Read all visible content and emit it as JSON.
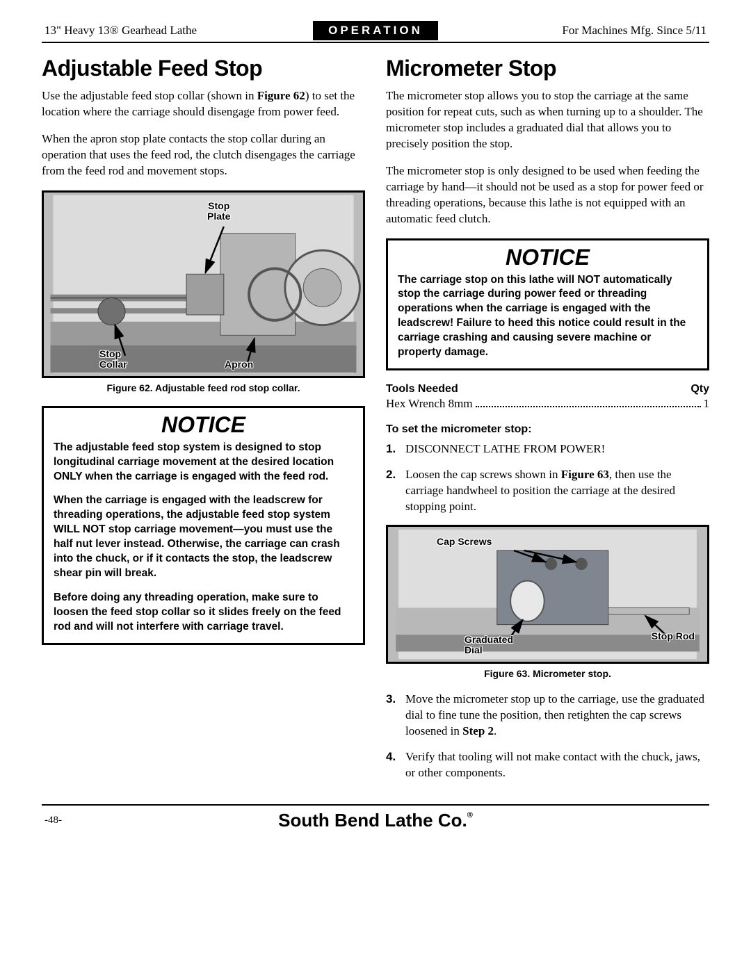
{
  "header": {
    "left": "13\" Heavy 13® Gearhead Lathe",
    "center": "OPERATION",
    "right": "For Machines Mfg. Since 5/11"
  },
  "left_col": {
    "heading": "Adjustable Feed Stop",
    "para1_a": "Use the adjustable feed stop collar (shown in ",
    "para1_b": "Figure 62",
    "para1_c": ") to set the location where the carriage should disengage from power feed.",
    "para2": "When the apron stop plate contacts the stop collar during an operation that uses the feed rod, the clutch disengages the carriage from the feed rod and movement stops.",
    "fig62": {
      "labels": {
        "stop_plate": "Stop\nPlate",
        "stop_collar": "Stop\nCollar",
        "apron": "Apron"
      },
      "caption": "Figure 62. Adjustable feed rod stop collar."
    },
    "notice": {
      "title": "NOTICE",
      "p1": "The adjustable feed stop system is designed to stop longitudinal carriage movement at the desired location ONLY when the carriage is engaged with the feed rod.",
      "p2": "When the carriage is engaged with the leadscrew for threading operations, the adjustable feed stop system WILL NOT stop carriage movement—you must use the half nut lever instead. Otherwise, the carriage can crash into the chuck, or if it contacts the stop, the leadscrew shear pin will break.",
      "p3": "Before doing any threading operation, make sure to loosen the feed stop collar so it slides freely on the feed rod and will not interfere with carriage travel."
    }
  },
  "right_col": {
    "heading": "Micrometer Stop",
    "para1": "The micrometer stop allows you to stop the carriage at the same position for repeat cuts, such as when turning up to a shoulder. The micrometer stop includes a graduated dial that allows you to precisely position the stop.",
    "para2": "The micrometer stop is only designed to be used when feeding the carriage by hand—it should not be used as a stop for power feed or threading operations, because this lathe is not equipped with an automatic feed clutch.",
    "notice": {
      "title": "NOTICE",
      "p1": "The carriage stop on this lathe will NOT automatically stop the carriage during power feed or threading operations when the carriage is engaged with the leadscrew! Failure to heed this notice could result in the carriage crashing and causing severe machine or property damage."
    },
    "tools": {
      "heading_left": "Tools Needed",
      "heading_right": "Qty",
      "item": "Hex Wrench 8mm",
      "qty": "1"
    },
    "steps_heading": "To set the micrometer stop:",
    "steps": {
      "s1": "DISCONNECT LATHE FROM POWER!",
      "s2_a": "Loosen the cap screws shown in ",
      "s2_b": "Figure 63",
      "s2_c": ", then use the carriage handwheel to position the carriage at the desired stopping point.",
      "s3_a": "Move the micrometer stop up to the carriage, use the graduated dial to fine tune the position, then retighten the cap screws loosened in ",
      "s3_b": "Step 2",
      "s3_c": ".",
      "s4": "Verify that tooling will not make contact with the chuck, jaws, or other components."
    },
    "fig63": {
      "labels": {
        "cap_screws": "Cap Screws",
        "graduated_dial": "Graduated\nDial",
        "stop_rod": "Stop Rod"
      },
      "caption": "Figure 63. Micrometer stop."
    }
  },
  "footer": {
    "page": "-48-",
    "brand": "South Bend Lathe Co."
  }
}
